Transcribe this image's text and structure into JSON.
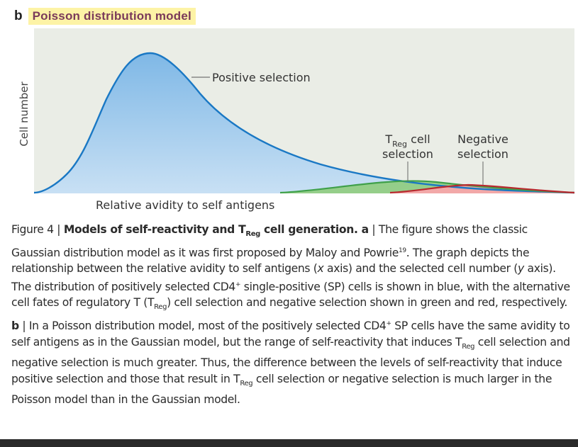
{
  "panel": {
    "letter": "b",
    "title": "Poisson distribution model"
  },
  "diagram": {
    "y_axis_label": "Cell number",
    "x_axis_label": "Relative avidity to self antigens",
    "labels": {
      "positive": "Positive selection",
      "treg_t": "T",
      "treg_sub": "Reg",
      "treg_rest": " cell",
      "treg_line2": "selection",
      "negative_line1": "Negative",
      "negative_line2": "selection"
    },
    "colors": {
      "background": "#eaede6",
      "positive_stroke": "#1a78c4",
      "treg_fill": "#8fcc7e",
      "treg_stroke": "#3fa04a",
      "negative_fill": "#f2a8a8",
      "negative_stroke": "#b8282e"
    }
  },
  "caption": {
    "figure_label": "Figure 4",
    "sep": " | ",
    "title_a": "Models of self-reactivity and T",
    "title_sub": "Reg",
    "title_b": " cell generation.",
    "a_label": " a",
    "t1": " | The figure shows the classic Gaussian distribution model as it was first proposed by Maloy and Powrie",
    "ref": "19",
    "t2": ". The graph depicts the relationship between the relative avidity to self antigens (",
    "x_axis_ital": "x",
    "t3": " axis) and the selected cell number (",
    "y_axis_ital": "y",
    "t4": " axis). The distribution of positively selected CD4",
    "plus": "+",
    "t5": " single-positive (SP) cells is shown in blue, with the alternative cell fates of regulatory T (T",
    "reg1": "Reg",
    "t6": ") cell selection and negative selection shown in green and red, respectively.",
    "b_label": " b",
    "t7": " | In a Poisson distribution model, most of the positively selected CD4",
    "plus2": "+",
    "t8": " SP cells have the same avidity to self antigens as in the Gaussian model, but the range of self-reactivity that induces T",
    "reg2": "Reg",
    "t9": " cell selection and negative selection is much greater. Thus, the difference between the levels of self-reactivity that induce positive selection and those that result in T",
    "reg3": "Reg",
    "t10": " cell selection or negative selection is much larger in the Poisson model than in the Gaussian model."
  }
}
